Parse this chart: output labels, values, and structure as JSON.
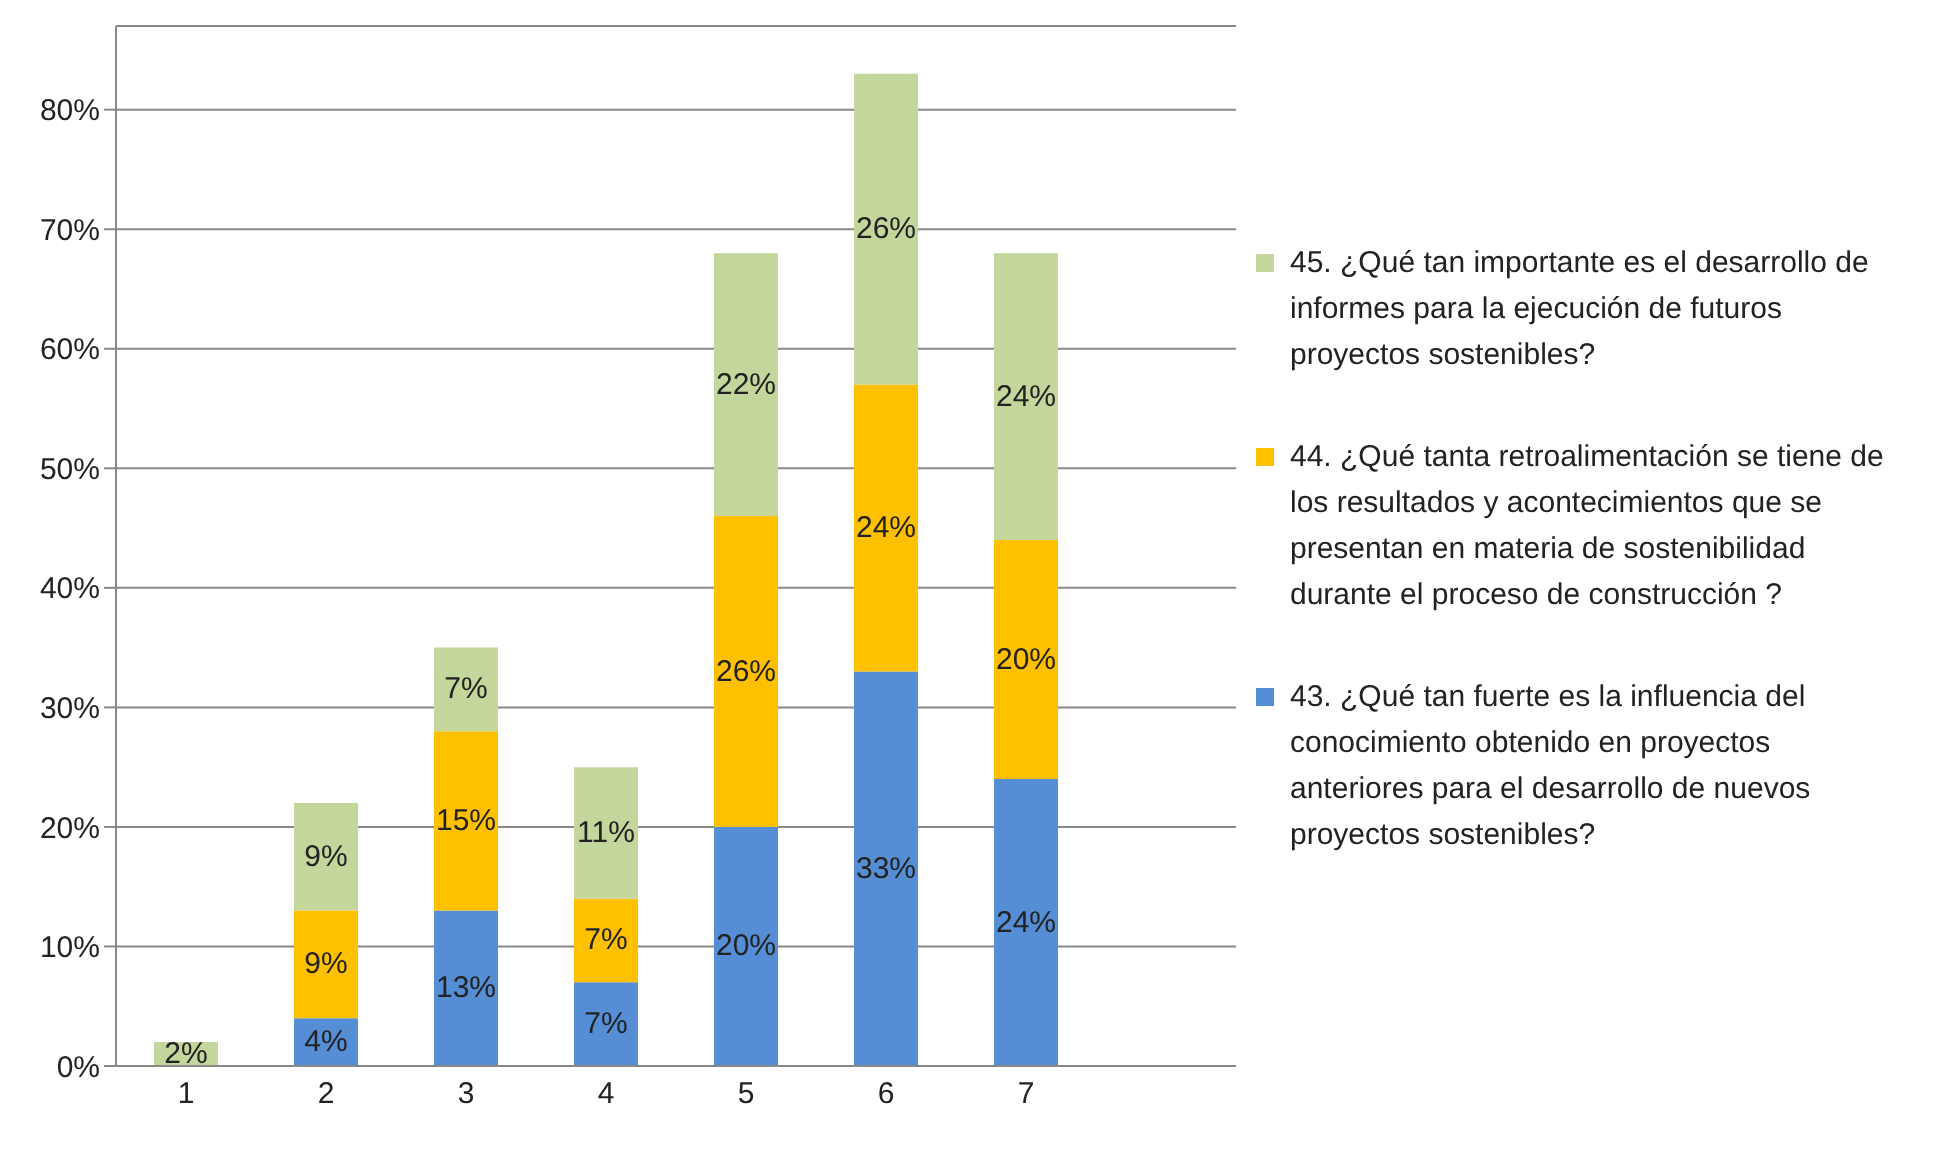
{
  "chart_data": {
    "type": "bar",
    "stacked": true,
    "categories": [
      "1",
      "2",
      "3",
      "4",
      "5",
      "6",
      "7",
      null
    ],
    "series": [
      {
        "name": "43. ¿Qué tan fuerte es la influencia del conocimiento obtenido en proyectos anteriores para el desarrollo de nuevos proyectos sostenibles?",
        "color": "#558ed5",
        "values": [
          null,
          4,
          13,
          7,
          20,
          33,
          24,
          null
        ],
        "value_labels": [
          null,
          "4%",
          "13%",
          "7%",
          "20%",
          "33%",
          "24%",
          null
        ]
      },
      {
        "name": "44. ¿Qué tanta retroalimentación se tiene de los resultados y acontecimientos que se presentan en materia de sostenibilidad durante el proceso de construcción ?",
        "color": "#ffc000",
        "values": [
          null,
          9,
          15,
          7,
          26,
          24,
          20,
          null
        ],
        "value_labels": [
          null,
          "9%",
          "15%",
          "7%",
          "26%",
          "24%",
          "20%",
          null
        ]
      },
      {
        "name": "45. ¿Qué tan importante es el desarrollo de informes para la ejecución de futuros proyectos sostenibles?",
        "color": "#c3d69b",
        "values": [
          2,
          9,
          7,
          11,
          22,
          26,
          24,
          null
        ],
        "value_labels": [
          "2%",
          "9%",
          "7%",
          "11%",
          "22%",
          "26%",
          "24%",
          null
        ]
      }
    ],
    "ylim": [
      0,
      87
    ],
    "yticks": [
      {
        "value": 0,
        "label": "0%"
      },
      {
        "value": 10,
        "label": "10%"
      },
      {
        "value": 20,
        "label": "20%"
      },
      {
        "value": 30,
        "label": "30%"
      },
      {
        "value": 40,
        "label": "40%"
      },
      {
        "value": 50,
        "label": "50%"
      },
      {
        "value": 60,
        "label": "60%"
      },
      {
        "value": 70,
        "label": "70%"
      },
      {
        "value": 80,
        "label": "80%"
      }
    ],
    "grid": "y",
    "legend": "right"
  }
}
